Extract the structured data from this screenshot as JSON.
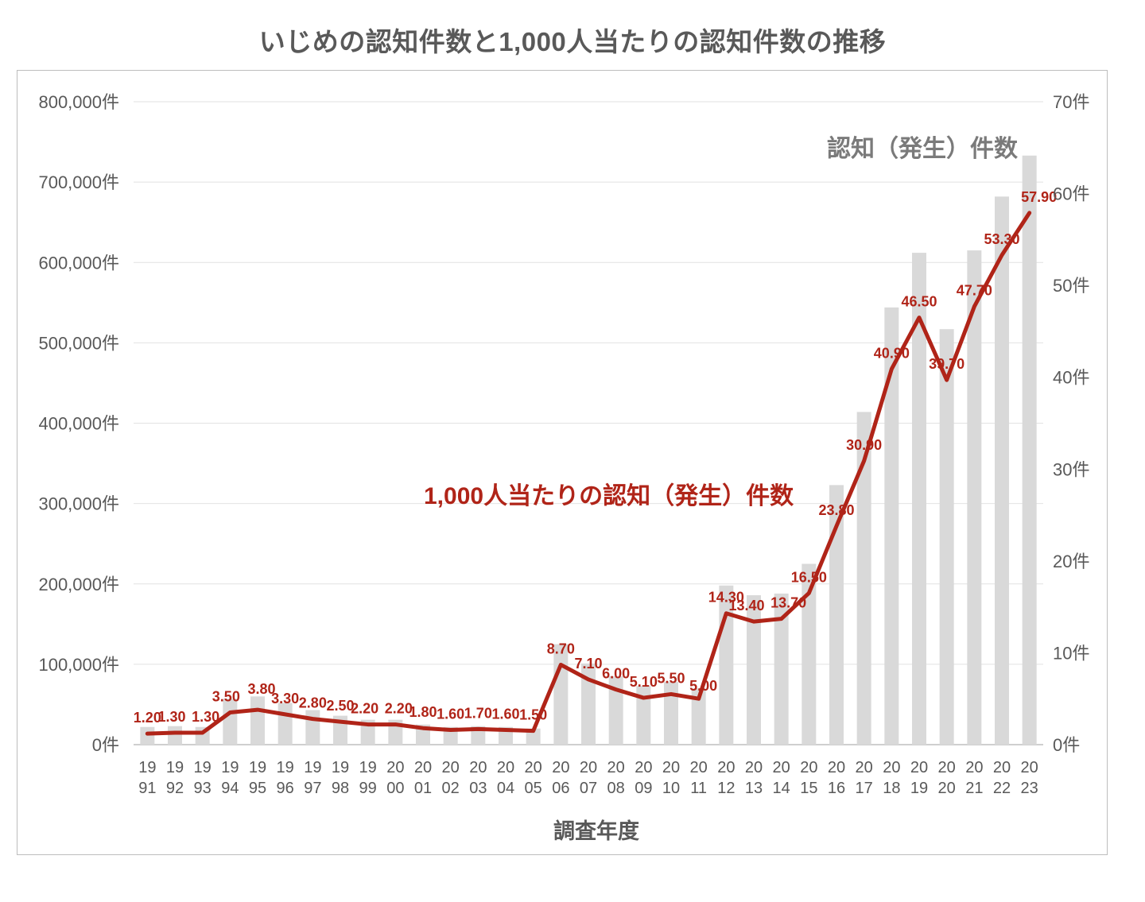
{
  "chart_data": {
    "type": "combo-bar-line",
    "title": "いじめの認知件数と1,000人当たりの認知件数の推移",
    "x_axis_title": "調査年度",
    "grid": "horizontal",
    "legend": "inline-text-labels",
    "categories": [
      "1991",
      "1992",
      "1993",
      "1994",
      "1995",
      "1996",
      "1997",
      "1998",
      "1999",
      "2000",
      "2001",
      "2002",
      "2003",
      "2004",
      "2005",
      "2006",
      "2007",
      "2008",
      "2009",
      "2010",
      "2011",
      "2012",
      "2013",
      "2014",
      "2015",
      "2016",
      "2017",
      "2018",
      "2019",
      "2020",
      "2021",
      "2022",
      "2023"
    ],
    "left_axis": {
      "min": 0,
      "max": 800000,
      "tick_interval": 100000,
      "tick_labels": [
        "0件",
        "100,000件",
        "200,000件",
        "300,000件",
        "400,000件",
        "500,000件",
        "600,000件",
        "700,000件",
        "800,000件"
      ]
    },
    "right_axis": {
      "min": 0,
      "max": 70,
      "tick_interval": 10,
      "tick_labels": [
        "0件",
        "10件",
        "20件",
        "30件",
        "40件",
        "50件",
        "60件",
        "70件"
      ]
    },
    "series": [
      {
        "name": "認知（発生）件数",
        "type": "bar",
        "axis": "left",
        "color": "#d9d9d9",
        "values": [
          22000,
          23000,
          22000,
          57000,
          60000,
          52000,
          43000,
          36000,
          31000,
          31000,
          25000,
          22000,
          23000,
          22000,
          20000,
          125000,
          101000,
          85000,
          73000,
          78000,
          70000,
          198000,
          186000,
          188000,
          225000,
          323000,
          414000,
          544000,
          612000,
          517000,
          615000,
          682000,
          733000
        ]
      },
      {
        "name": "1,000人当たりの認知（発生）件数",
        "type": "line",
        "axis": "right",
        "color": "#b02418",
        "values": [
          1.2,
          1.3,
          1.3,
          3.5,
          3.8,
          3.3,
          2.8,
          2.5,
          2.2,
          2.2,
          1.8,
          1.6,
          1.7,
          1.6,
          1.5,
          8.7,
          7.1,
          6.0,
          5.1,
          5.5,
          5.0,
          14.3,
          13.4,
          13.7,
          16.5,
          23.8,
          30.9,
          40.9,
          46.5,
          39.7,
          47.7,
          53.3,
          57.9
        ],
        "point_labels": [
          "1.20",
          "1.30",
          "1.30",
          "3.50",
          "3.80",
          "3.30",
          "2.80",
          "2.50",
          "2.20",
          "2.20",
          "1.80",
          "1.60",
          "1.70",
          "1.60",
          "1.50",
          "8.70",
          "7.10",
          "6.00",
          "5.10",
          "5.50",
          "5.00",
          "14.30",
          "13.40",
          "13.70",
          "16.50",
          "23.80",
          "30.90",
          "40.90",
          "46.50",
          "39.70",
          "47.70",
          "53.30",
          "57.90"
        ]
      }
    ],
    "colors": {
      "title_text": "#595959",
      "axis_text": "#595959",
      "gridline": "#e2e2e2",
      "baseline": "#cfcfcf",
      "bar_label_text": "#7a7a7a"
    }
  }
}
